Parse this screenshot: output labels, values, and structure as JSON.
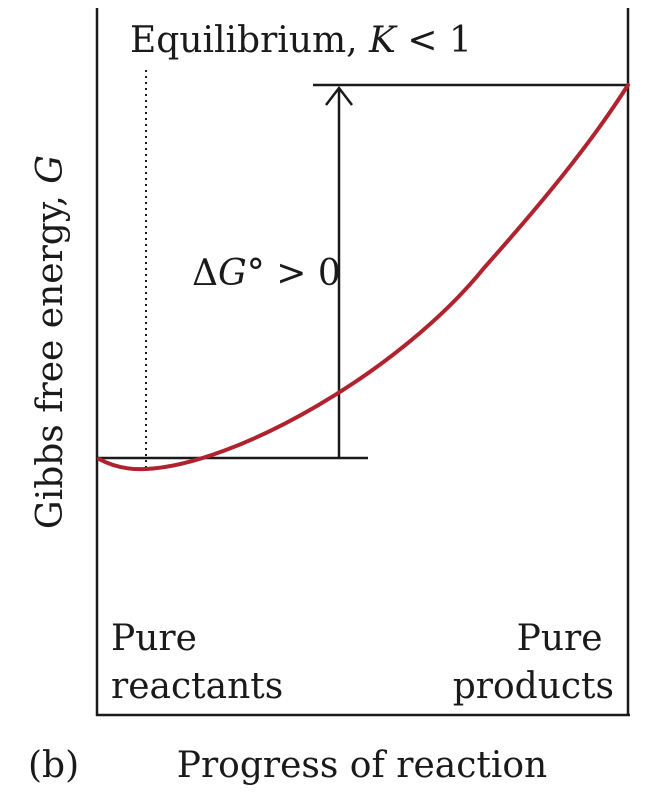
{
  "figure": {
    "panel_label": "(b)",
    "x_axis_label": "Progress of reaction",
    "y_axis_label": {
      "text": "Gibbs free energy, ",
      "variable": "G"
    },
    "equilibrium_label": {
      "text": "Equilibrium, ",
      "variable": "K",
      "condition": " < 1"
    },
    "delta_g_label": {
      "symbol": "Δ",
      "variable": "G",
      "condition": "° > 0"
    },
    "left_end_label": [
      "Pure",
      "reactants"
    ],
    "right_end_label": [
      "Pure",
      "products"
    ],
    "colors": {
      "curve": "#b0232e",
      "axes": "#1a1a1a"
    }
  }
}
